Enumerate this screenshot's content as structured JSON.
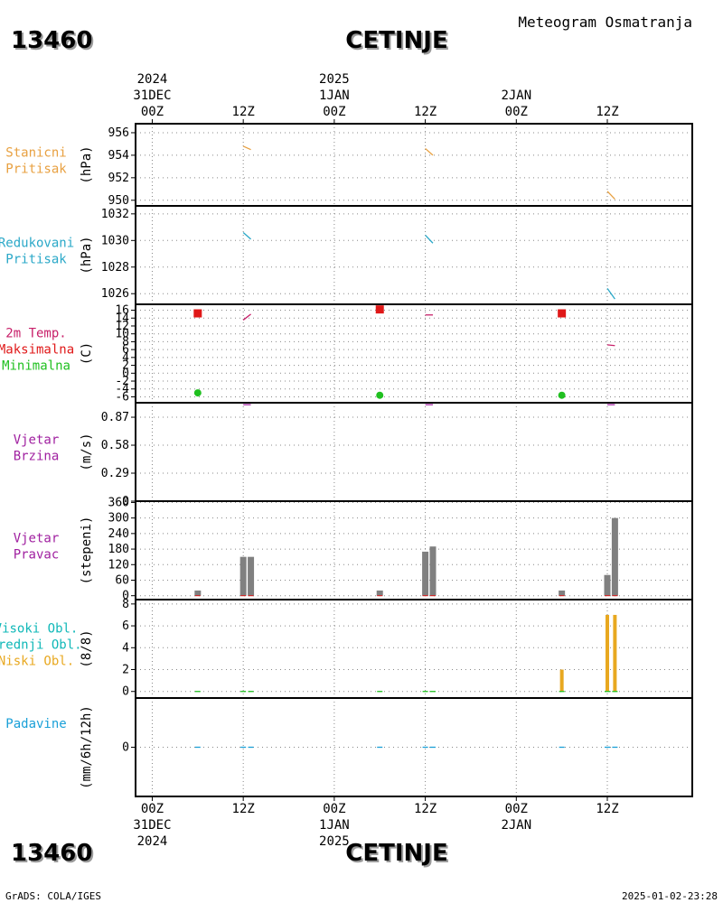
{
  "header": {
    "station_id": "13460",
    "station_name": "CETINJE",
    "product_title": "Meteogram Osmatranja"
  },
  "time_axis": {
    "top_labels": [
      {
        "hour": 0,
        "lines": [
          "2024",
          "31DEC",
          "00Z"
        ]
      },
      {
        "hour": 12,
        "lines": [
          "12Z"
        ]
      },
      {
        "hour": 24,
        "lines": [
          "2025",
          "1JAN",
          "00Z"
        ]
      },
      {
        "hour": 36,
        "lines": [
          "12Z"
        ]
      },
      {
        "hour": 48,
        "lines": [
          "2JAN",
          "00Z"
        ]
      },
      {
        "hour": 60,
        "lines": [
          "12Z"
        ]
      }
    ],
    "bottom_labels": [
      {
        "hour": 0,
        "lines": [
          "00Z",
          "31DEC",
          "2024"
        ]
      },
      {
        "hour": 12,
        "lines": [
          "12Z"
        ]
      },
      {
        "hour": 24,
        "lines": [
          "00Z",
          "1JAN",
          "2025"
        ]
      },
      {
        "hour": 36,
        "lines": [
          "12Z"
        ]
      },
      {
        "hour": 48,
        "lines": [
          "00Z",
          "2JAN"
        ]
      },
      {
        "hour": 60,
        "lines": [
          "12Z"
        ]
      }
    ]
  },
  "footer": {
    "credit": "GrADS: COLA/IGES",
    "timestamp": "2025-01-02-23:28"
  },
  "colors": {
    "station_pressure": "#e8a040",
    "reduced_pressure": "#2aa8c8",
    "temp_label": "#c8206a",
    "tmax": "#e01818",
    "tmin": "#20c020",
    "wind": "#a020a0",
    "wind_dir_label": "#a020a0",
    "high_cloud": "#10b8b8",
    "mid_cloud": "#10b8b8",
    "low_cloud": "#e8a820",
    "precip": "#1aa0d8",
    "bar_gray": "#808080",
    "grid": "#888888"
  },
  "chart_data": [
    {
      "type": "line",
      "panel": "station_pressure",
      "label_lines": [
        "Stanicni",
        "Pritisak"
      ],
      "unit": "(hPa)",
      "ylim": [
        949.5,
        956.8
      ],
      "yticks": [
        950,
        952,
        954,
        956
      ],
      "grid": true,
      "series": [
        {
          "x": [
            12,
            13
          ],
          "y": [
            954.8,
            954.5
          ]
        },
        {
          "x": [
            36,
            37
          ],
          "y": [
            954.6,
            954.0
          ]
        },
        {
          "x": [
            60,
            61
          ],
          "y": [
            950.8,
            950.1
          ]
        }
      ]
    },
    {
      "type": "line",
      "panel": "reduced_pressure",
      "label_lines": [
        "Redukovani",
        "Pritisak"
      ],
      "unit": "(hPa)",
      "ylim": [
        1025.2,
        1032.6
      ],
      "yticks": [
        1026,
        1028,
        1030,
        1032
      ],
      "grid": true,
      "series": [
        {
          "x": [
            12,
            13
          ],
          "y": [
            1030.6,
            1030.1
          ]
        },
        {
          "x": [
            36,
            37
          ],
          "y": [
            1030.4,
            1029.8
          ]
        },
        {
          "x": [
            60,
            61
          ],
          "y": [
            1026.4,
            1025.6
          ]
        }
      ]
    },
    {
      "type": "line",
      "panel": "temperature",
      "label_lines": [
        "2m Temp.",
        "Maksimalna",
        "Minimalna"
      ],
      "unit": "(C)",
      "ylim": [
        -7.5,
        17.5
      ],
      "yticks": [
        -6,
        -4,
        -2,
        0,
        2,
        4,
        6,
        8,
        10,
        12,
        14,
        16
      ],
      "grid": true,
      "series": [
        {
          "name": "2m Temp.",
          "x": [
            12,
            13
          ],
          "y": [
            13.5,
            15.0
          ]
        },
        {
          "name": "2m Temp.",
          "x": [
            36,
            37
          ],
          "y": [
            14.8,
            14.8
          ]
        },
        {
          "name": "2m Temp.",
          "x": [
            60,
            61
          ],
          "y": [
            7.2,
            7.0
          ]
        }
      ],
      "max_points": {
        "x": [
          6,
          30,
          54
        ],
        "y": [
          15.2,
          16.2,
          15.2
        ]
      },
      "min_points": {
        "x": [
          6,
          30,
          54
        ],
        "y": [
          -5.0,
          -5.6,
          -5.6
        ]
      }
    },
    {
      "type": "line",
      "panel": "wind_speed",
      "label_lines": [
        "Vjetar",
        "Brzina"
      ],
      "unit": "(m/s)",
      "ylim": [
        0,
        1.02
      ],
      "yticks": [
        0,
        0.29,
        0.58,
        0.87
      ],
      "grid": true,
      "series": [
        {
          "x": [
            12,
            13
          ],
          "y": [
            1.0,
            1.0
          ]
        },
        {
          "x": [
            36,
            37
          ],
          "y": [
            1.0,
            1.0
          ]
        },
        {
          "x": [
            60,
            61
          ],
          "y": [
            1.0,
            1.0
          ]
        }
      ]
    },
    {
      "type": "bar",
      "panel": "wind_direction",
      "label_lines": [
        "Vjetar",
        "Pravac"
      ],
      "unit": "(stepeni)",
      "ylim": [
        -15,
        365
      ],
      "yticks": [
        0,
        60,
        120,
        180,
        240,
        300,
        360
      ],
      "grid": true,
      "bars": [
        {
          "x": 6,
          "value": 20
        },
        {
          "x": 12,
          "value": 150
        },
        {
          "x": 13,
          "value": 150
        },
        {
          "x": 30,
          "value": 20
        },
        {
          "x": 36,
          "value": 170
        },
        {
          "x": 37,
          "value": 190
        },
        {
          "x": 54,
          "value": 20
        },
        {
          "x": 60,
          "value": 80
        },
        {
          "x": 61,
          "value": 300
        }
      ]
    },
    {
      "type": "bar",
      "panel": "clouds",
      "label_lines": [
        "Visoki Obl.",
        "Srednji Obl.",
        "Niski Obl."
      ],
      "unit": "(8/8)",
      "ylim": [
        -0.6,
        8.4
      ],
      "yticks": [
        0,
        2,
        4,
        6,
        8
      ],
      "grid": true,
      "low_cloud_bars": [
        {
          "x": 54,
          "value": 2
        },
        {
          "x": 60,
          "value": 7
        },
        {
          "x": 61,
          "value": 7
        }
      ],
      "trace_marks_x": [
        6,
        12,
        13,
        30,
        36,
        37,
        54,
        60,
        61
      ]
    },
    {
      "type": "bar",
      "panel": "precipitation",
      "label_lines": [
        "Padavine"
      ],
      "unit": "(mm/6h/12h)",
      "ylim": [
        -5,
        5
      ],
      "yticks": [
        0
      ],
      "grid": true,
      "trace_marks_x": [
        6,
        12,
        13,
        30,
        36,
        37,
        54,
        60,
        61
      ]
    }
  ]
}
